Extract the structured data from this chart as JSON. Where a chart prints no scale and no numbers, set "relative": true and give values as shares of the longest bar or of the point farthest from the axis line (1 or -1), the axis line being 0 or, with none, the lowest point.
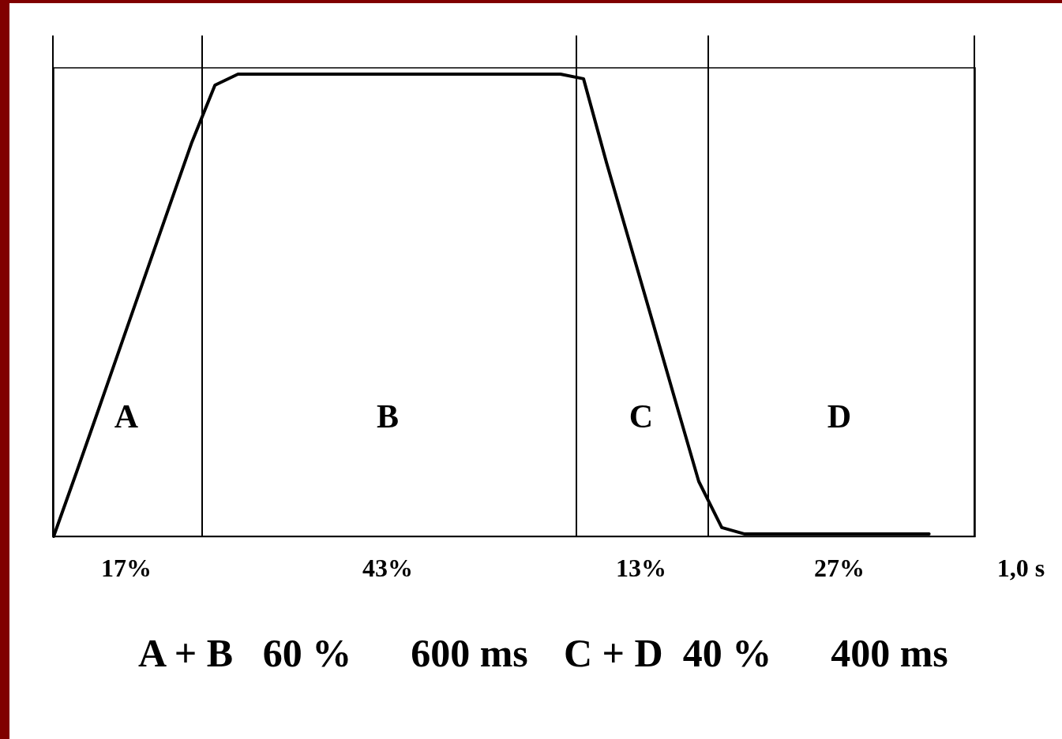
{
  "chart_data": {
    "type": "line",
    "relative": true,
    "categories": [
      null,
      null,
      null,
      null,
      null,
      null,
      null,
      null,
      null,
      null,
      null,
      null,
      null,
      null,
      null,
      null,
      null,
      null,
      null,
      null,
      null,
      null,
      null,
      null,
      null,
      null,
      null,
      null,
      null,
      null,
      null,
      null,
      null,
      null,
      null,
      null,
      null,
      null,
      null,
      null,
      null
    ],
    "series": [
      {
        "color": "#000000",
        "values": [
          0,
          0.14,
          0.282,
          0.425,
          0.568,
          0.711,
          0.853,
          0.976,
          1,
          1,
          1,
          1,
          1,
          1,
          1,
          1,
          1,
          1,
          1,
          1,
          1,
          1,
          1,
          0.99,
          0.808,
          0.636,
          0.464,
          0.291,
          0.119,
          0.019,
          0.005,
          0.005,
          0.005,
          0.005,
          0.005,
          0.005,
          0.005,
          0.005,
          0.005,
          null,
          null
        ]
      }
    ],
    "annotations": [
      "A",
      "B",
      "C",
      "D",
      "17%",
      "43%",
      "13%",
      "27%",
      "1,0 s",
      "A + B   60 %      600 ms",
      "C + D  40 %      400 ms"
    ]
  }
}
